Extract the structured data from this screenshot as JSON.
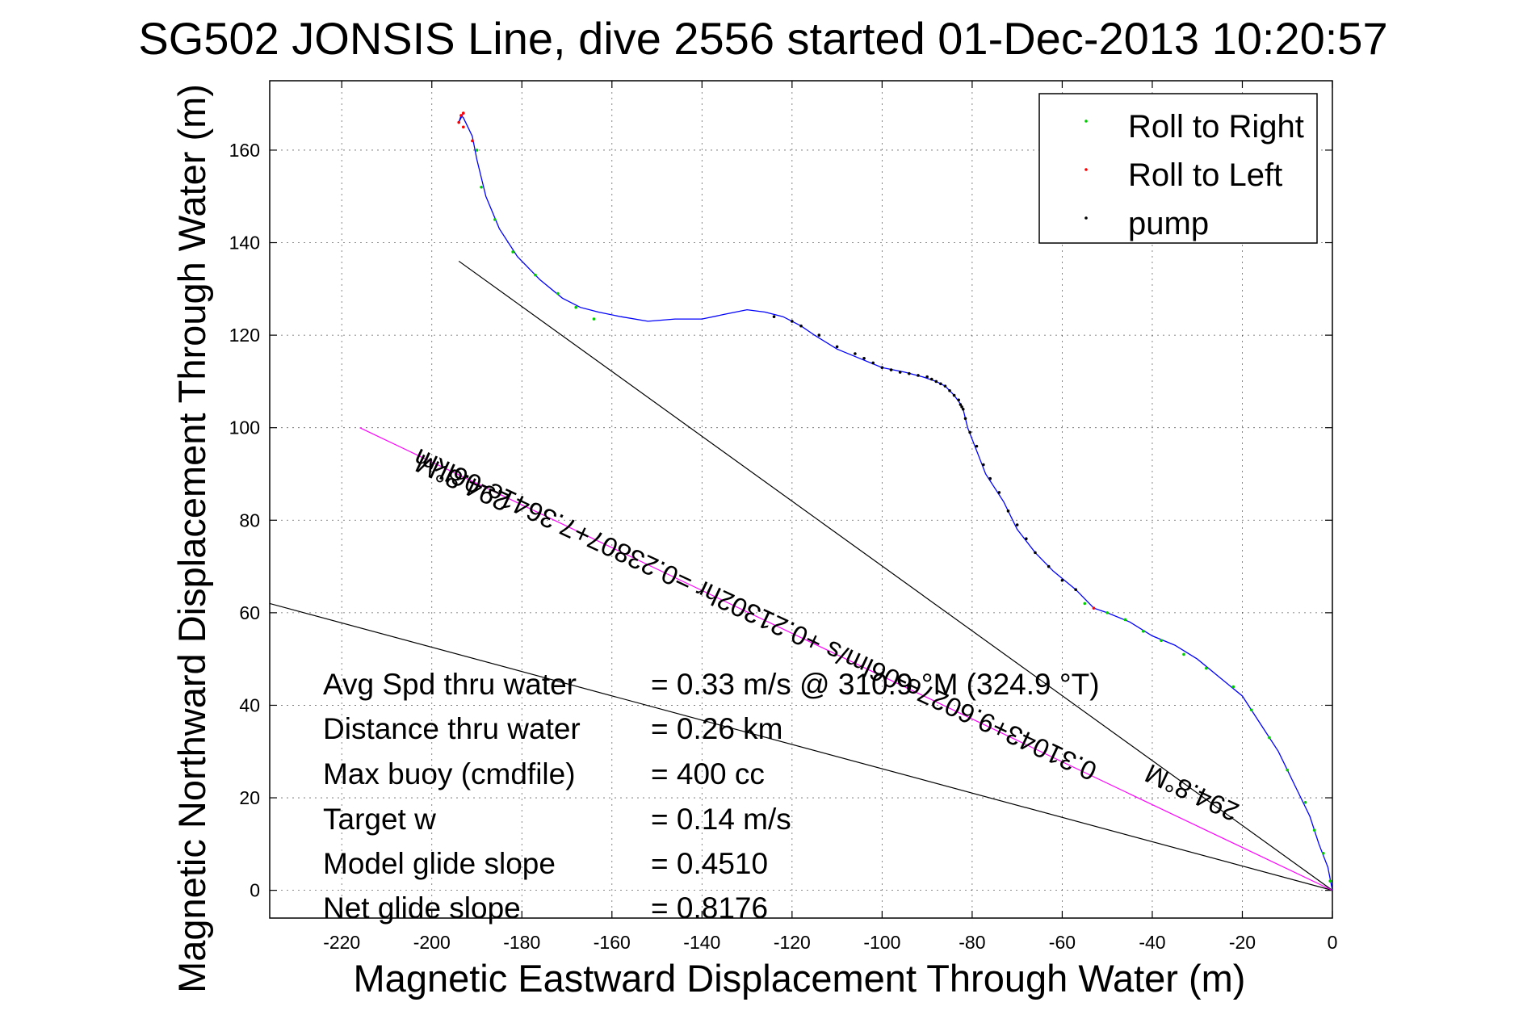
{
  "chart_data": {
    "type": "line",
    "title": "SG502 JONSIS Line, dive 2556 started 01-Dec-2013 10:20:57",
    "xlabel": "Magnetic Eastward Displacement Through Water (m)",
    "ylabel": "Magnetic Northward Displacement Through Water (m)",
    "xlim": [
      -236,
      0
    ],
    "ylim": [
      -6,
      175
    ],
    "xticks": [
      -220,
      -200,
      -180,
      -160,
      -140,
      -120,
      -100,
      -80,
      -60,
      -40,
      -20,
      0
    ],
    "yticks": [
      0,
      20,
      40,
      60,
      80,
      100,
      120,
      140,
      160
    ],
    "grid": true,
    "legend_position": "top-right",
    "legend": [
      {
        "label": "Roll to Right",
        "color": "#00cc00"
      },
      {
        "label": "Roll to Left",
        "color": "#ff0000"
      },
      {
        "label": "pump",
        "color": "#000000"
      }
    ],
    "track": {
      "color": "#0000ff",
      "x": [
        0,
        -1,
        -3,
        -5,
        -8,
        -12,
        -16,
        -20,
        -25,
        -30,
        -35,
        -40,
        -45,
        -50,
        -53,
        -57,
        -62,
        -66,
        -70,
        -73,
        -77,
        -79,
        -81,
        -82,
        -82.5,
        -84,
        -86,
        -88,
        -91,
        -95,
        -100,
        -105,
        -110,
        -115,
        -118,
        -122,
        -126,
        -130,
        -135,
        -140,
        -146,
        -152,
        -158,
        -163,
        -167,
        -171,
        -176,
        -181,
        -185,
        -188,
        -190,
        -191,
        -192,
        -193,
        -193.5,
        -194,
        -193
      ],
      "y": [
        0,
        5,
        10,
        16,
        22,
        30,
        36,
        42,
        46,
        50,
        53,
        55,
        58,
        60,
        61,
        65,
        69,
        73,
        78,
        84,
        90,
        95,
        100,
        104,
        105,
        107,
        109,
        110,
        111,
        112,
        113,
        115,
        117,
        120,
        122,
        124,
        125,
        125.5,
        124.5,
        123.5,
        123.5,
        123,
        124,
        125,
        126,
        128,
        132,
        137,
        143,
        150,
        158,
        163,
        165,
        167,
        167.5,
        166,
        168
      ],
      "roll_right": [
        [
          -0.5,
          2
        ],
        [
          -2,
          8
        ],
        [
          -4,
          13
        ],
        [
          -6,
          19
        ],
        [
          -10,
          26
        ],
        [
          -14,
          33
        ],
        [
          -18,
          39
        ],
        [
          -22,
          44
        ],
        [
          -28,
          48
        ],
        [
          -33,
          51
        ],
        [
          -38,
          54
        ],
        [
          -42,
          56
        ],
        [
          -46,
          58.5
        ],
        [
          -50,
          60
        ],
        [
          -55,
          62
        ],
        [
          -164,
          123.5
        ],
        [
          -168,
          126
        ],
        [
          -172,
          129
        ],
        [
          -177,
          133
        ],
        [
          -182,
          138
        ],
        [
          -186,
          145
        ],
        [
          -189,
          152
        ],
        [
          -190,
          160
        ]
      ],
      "roll_left": [
        [
          -53,
          61
        ],
        [
          -191,
          162
        ],
        [
          -193,
          165
        ],
        [
          -193.5,
          167.5
        ],
        [
          -194,
          166
        ],
        [
          -193,
          168
        ]
      ],
      "pump": [
        [
          -57,
          65
        ],
        [
          -60,
          67
        ],
        [
          -63,
          70
        ],
        [
          -66,
          73
        ],
        [
          -68,
          76
        ],
        [
          -70,
          79
        ],
        [
          -72,
          82
        ],
        [
          -74,
          86
        ],
        [
          -76,
          89
        ],
        [
          -77.5,
          92
        ],
        [
          -79,
          96
        ],
        [
          -80.5,
          99
        ],
        [
          -81.5,
          102
        ],
        [
          -82,
          104
        ],
        [
          -82.3,
          104.5
        ],
        [
          -82.6,
          105
        ],
        [
          -83,
          106
        ],
        [
          -84,
          107
        ],
        [
          -85,
          108
        ],
        [
          -86,
          109
        ],
        [
          -87,
          109.5
        ],
        [
          -88,
          110
        ],
        [
          -89,
          110.5
        ],
        [
          -90,
          111
        ],
        [
          -92,
          111.3
        ],
        [
          -94,
          111.7
        ],
        [
          -96,
          112
        ],
        [
          -98,
          112.5
        ],
        [
          -100,
          113
        ],
        [
          -102,
          114
        ],
        [
          -104,
          115
        ],
        [
          -106,
          116
        ],
        [
          -110,
          117.5
        ],
        [
          -114,
          120
        ],
        [
          -118,
          122
        ],
        [
          -120,
          123
        ],
        [
          -124,
          124
        ]
      ]
    },
    "reference_lines": [
      {
        "color": "#000000",
        "from": [
          0,
          0
        ],
        "to": [
          -194,
          136
        ]
      },
      {
        "color": "#000000",
        "from": [
          0,
          0
        ],
        "to": [
          -236,
          62
        ]
      },
      {
        "color": "#ff00ff",
        "from": [
          0,
          0
        ],
        "to": [
          -216,
          100
        ]
      }
    ],
    "line_labels": [
      {
        "text": "294.8°M",
        "x": -31,
        "y": 21.5,
        "rotate": 25
      },
      {
        "text": "0.31043+9.6027e-06lm/s +0.21302hr =0.23807+7.3641e-06lkm",
        "x": -128,
        "y": 60,
        "rotate": 25
      },
      {
        "text": "294.8°M",
        "x": -193,
        "y": 88.5,
        "rotate": 25
      }
    ],
    "annotations": {
      "rows": [
        {
          "label": "Avg Spd thru water",
          "value": "=  0.33 m/s @ 310.9 °M (324.9 °T)"
        },
        {
          "label": "Distance thru water",
          "value": "=  0.26 km"
        },
        {
          "label": "Max buoy (cmdfile)",
          "value": "= 400 cc"
        },
        {
          "label": "Target w",
          "value": "= 0.14 m/s"
        },
        {
          "label": "Model glide slope",
          "value": "= 0.4510"
        },
        {
          "label": "Net glide slope",
          "value": "= 0.8176"
        }
      ]
    }
  }
}
